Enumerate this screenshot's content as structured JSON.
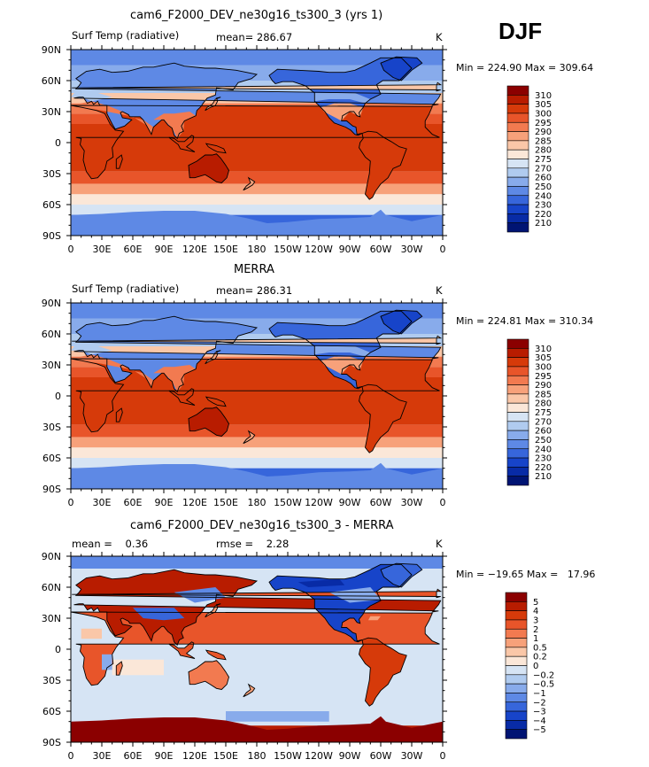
{
  "season": "DJF",
  "panels": [
    {
      "title": "cam6_F2000_DEV_ne30g16_ts300_3 (yrs 1)",
      "left_label": "Surf Temp (radiative)",
      "center_label": "mean= 286.67",
      "units": "K",
      "minmax": "Min = 224.90 Max = 309.64"
    },
    {
      "title": "MERRA",
      "left_label": "Surf Temp (radiative)",
      "center_label": "mean= 286.31",
      "units": "K",
      "minmax": "Min = 224.81 Max = 310.34"
    },
    {
      "title": "cam6_F2000_DEV_ne30g16_ts300_3 - MERRA",
      "left_label": "mean =    0.36",
      "center_label": "rmse =    2.28",
      "units": "K",
      "minmax": "Min = −19.65 Max =   17.96"
    }
  ],
  "chart_data": [
    {
      "type": "heatmap",
      "title": "cam6_F2000_DEV_ne30g16_ts300_3 (yrs 1)",
      "xlabel": "",
      "ylabel": "",
      "x_ticks": [
        "0",
        "30E",
        "60E",
        "90E",
        "120E",
        "150E",
        "180",
        "150W",
        "120W",
        "90W",
        "60W",
        "30W",
        "0"
      ],
      "y_ticks": [
        "90N",
        "60N",
        "30N",
        "0",
        "30S",
        "60S",
        "90S"
      ],
      "colorbar_levels": [
        "310",
        "305",
        "300",
        "295",
        "290",
        "285",
        "280",
        "275",
        "270",
        "260",
        "250",
        "240",
        "230",
        "220",
        "210"
      ],
      "colorbar_colors": [
        "#8b0000",
        "#b81c00",
        "#d63a0a",
        "#e8552a",
        "#f27a50",
        "#f7a17a",
        "#fac7a8",
        "#fbe7d8",
        "#d6e4f4",
        "#b0cbef",
        "#88abeb",
        "#5e89e5",
        "#3766db",
        "#1744c9",
        "#082ba6",
        "#001473"
      ],
      "mean": 286.67,
      "min": 224.9,
      "max": 309.64,
      "units": "K"
    },
    {
      "type": "heatmap",
      "title": "MERRA",
      "xlabel": "",
      "ylabel": "",
      "x_ticks": [
        "0",
        "30E",
        "60E",
        "90E",
        "120E",
        "150E",
        "180",
        "150W",
        "120W",
        "90W",
        "60W",
        "30W",
        "0"
      ],
      "y_ticks": [
        "90N",
        "60N",
        "30N",
        "0",
        "30S",
        "60S",
        "90S"
      ],
      "colorbar_levels": [
        "310",
        "305",
        "300",
        "295",
        "290",
        "285",
        "280",
        "275",
        "270",
        "260",
        "250",
        "240",
        "230",
        "220",
        "210"
      ],
      "colorbar_colors": [
        "#8b0000",
        "#b81c00",
        "#d63a0a",
        "#e8552a",
        "#f27a50",
        "#f7a17a",
        "#fac7a8",
        "#fbe7d8",
        "#d6e4f4",
        "#b0cbef",
        "#88abeb",
        "#5e89e5",
        "#3766db",
        "#1744c9",
        "#082ba6",
        "#001473"
      ],
      "mean": 286.31,
      "min": 224.81,
      "max": 310.34,
      "units": "K"
    },
    {
      "type": "heatmap",
      "title": "cam6_F2000_DEV_ne30g16_ts300_3 - MERRA",
      "xlabel": "",
      "ylabel": "",
      "x_ticks": [
        "0",
        "30E",
        "60E",
        "90E",
        "120E",
        "150E",
        "180",
        "150W",
        "120W",
        "90W",
        "60W",
        "30W",
        "0"
      ],
      "y_ticks": [
        "90N",
        "60N",
        "30N",
        "0",
        "30S",
        "60S",
        "90S"
      ],
      "colorbar_levels": [
        "5",
        "4",
        "3",
        "2",
        "1",
        "0.5",
        "0.2",
        "0",
        "−0.2",
        "−0.5",
        "−1",
        "−2",
        "−3",
        "−4",
        "−5"
      ],
      "colorbar_colors": [
        "#8b0000",
        "#b81c00",
        "#d63a0a",
        "#e8552a",
        "#f27a50",
        "#f7a17a",
        "#fac7a8",
        "#fbe7d8",
        "#d6e4f4",
        "#b0cbef",
        "#88abeb",
        "#5e89e5",
        "#3766db",
        "#1744c9",
        "#082ba6",
        "#001473"
      ],
      "mean": 0.36,
      "rmse": 2.28,
      "min": -19.65,
      "max": 17.96,
      "units": "K"
    }
  ]
}
